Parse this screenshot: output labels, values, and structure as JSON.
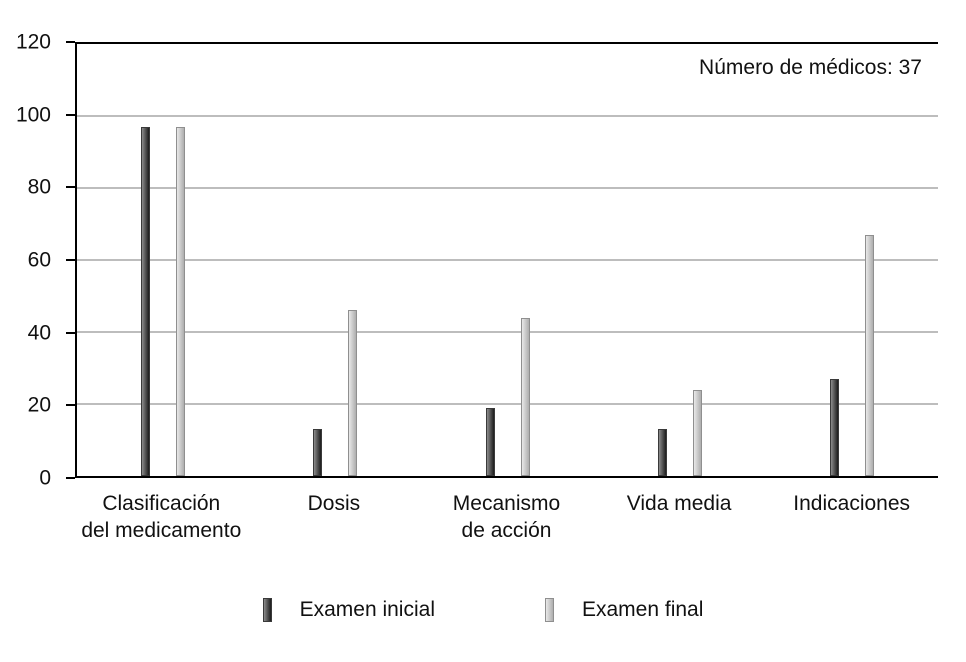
{
  "chart_data": {
    "type": "bar",
    "title": "",
    "xlabel": "",
    "ylabel": "",
    "annotation": "Número de médicos: 37",
    "categories": [
      "Clasificación\ndel medicamento",
      "Dosis",
      "Mecanismo\nde acción",
      "Vida media",
      "Indicaciones"
    ],
    "series": [
      {
        "key": "examen-inicial",
        "name": "Examen inicial",
        "values": [
          97,
          13,
          19,
          13,
          27
        ],
        "fill_from": "#8c8c8c",
        "fill_to": "#1c1c1c",
        "border": "#3a3a3a"
      },
      {
        "key": "examen-final",
        "name": "Examen final",
        "values": [
          97,
          46,
          44,
          24,
          67
        ],
        "fill_from": "#e8e8e8",
        "fill_to": "#aeaeae",
        "border": "#8f8f8f"
      }
    ],
    "ylim": [
      0,
      120
    ],
    "yticks": [
      0,
      20,
      40,
      60,
      80,
      100,
      120
    ],
    "grid": "horizontal",
    "legend_position": "bottom"
  },
  "colors": {
    "background": "#ffffff",
    "axis": "#000000",
    "gridline": "#bdbdbd",
    "text": "#111111"
  }
}
